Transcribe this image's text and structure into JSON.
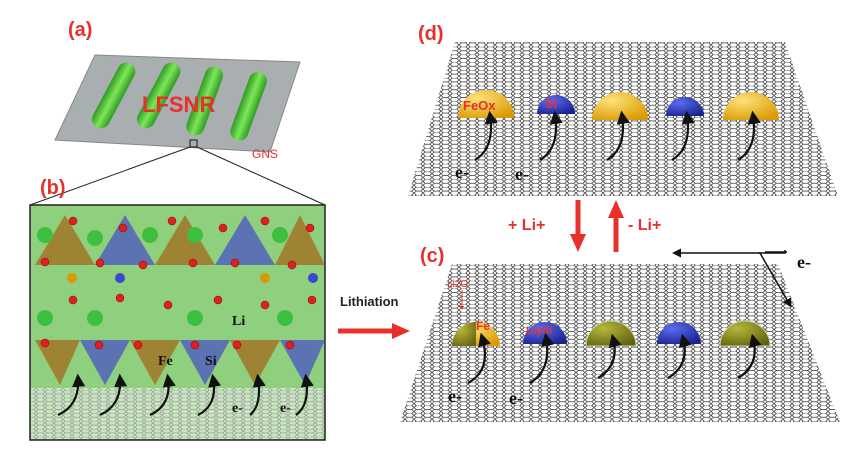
{
  "panels": {
    "a": {
      "label": "(a)",
      "rod_label": "LFSNR",
      "sheet_label": "GNS"
    },
    "b": {
      "label": "(b)",
      "atoms": {
        "li": "Li",
        "fe": "Fe",
        "si": "Si"
      },
      "electron": "e-"
    },
    "c": {
      "label": "(c)",
      "shell_label": "Li2O",
      "core_label": "Fe",
      "si_label": "LiySi",
      "electron": "e-"
    },
    "d": {
      "label": "(d)",
      "feox_label": "FeOx",
      "si_label": "Si",
      "electron": "e-"
    }
  },
  "process": {
    "lithiation": "Lithiation",
    "plus_li": "+ Li+",
    "minus_li": "- Li+"
  },
  "colors": {
    "label_red": "#e8302a",
    "rod_green": "#4cc93a",
    "plate_gray": "#a9aeb0",
    "feox_yellow": "#f2b516",
    "si_blue": "#2b3bb8",
    "lithiated_olive": "#8d8f1c"
  }
}
